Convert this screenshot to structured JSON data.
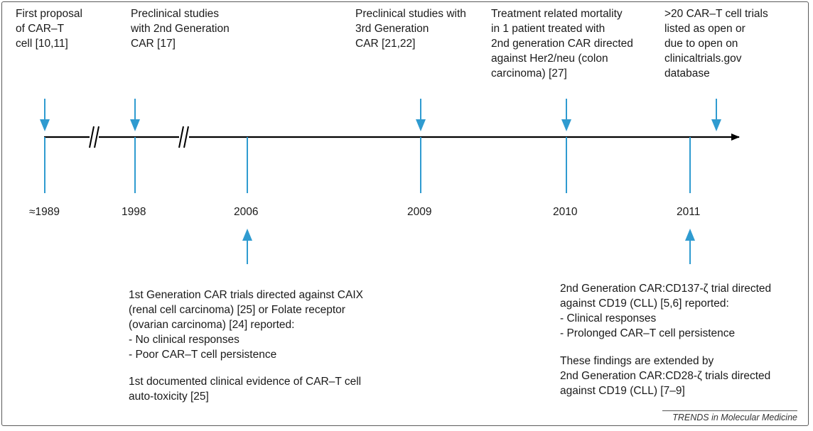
{
  "colors": {
    "accent": "#2f9bd0",
    "axis": "#000000",
    "text": "#1a1a1a"
  },
  "events": {
    "e1989": {
      "lines": [
        "First proposal",
        "of CAR–T",
        "cell [10,11]"
      ]
    },
    "e1998": {
      "lines": [
        "Preclinical studies",
        "with 2nd Generation",
        "CAR [17]"
      ]
    },
    "e2009": {
      "lines": [
        "Preclinical studies with",
        "3rd Generation",
        "CAR [21,22]"
      ]
    },
    "e2010": {
      "lines": [
        "Treatment related mortality",
        "in 1 patient treated with",
        "2nd generation CAR directed",
        "against Her2/neu (colon",
        "carcinoma) [27]"
      ]
    },
    "e_open": {
      "lines": [
        ">20 CAR–T cell trials",
        "listed as open or",
        "due to open on",
        "clinicaltrials.gov",
        "database"
      ]
    },
    "e2006": {
      "lines": [
        "1st Generation CAR trials directed against CAIX",
        "(renal cell carcinoma) [25] or Folate receptor",
        "(ovarian carcinoma) [24] reported:",
        "- No clinical responses",
        "- Poor CAR–T cell persistence"
      ],
      "lines2": [
        "1st documented clinical evidence of CAR–T cell",
        "auto-toxicity [25]"
      ]
    },
    "e2011": {
      "lines": [
        "2nd Generation CAR:CD137-ζ trial directed",
        "against CD19 (CLL) [5,6] reported:",
        "- Clinical responses",
        "- Prolonged CAR–T cell persistence"
      ],
      "lines2": [
        "These findings are extended by",
        "2nd Generation CAR:CD28-ζ trials directed",
        "against CD19 (CLL) [7–9]"
      ]
    }
  },
  "years": {
    "y1989": "≈1989",
    "y1998": "1998",
    "y2006": "2006",
    "y2009": "2009",
    "y2010": "2010",
    "y2011": "2011"
  },
  "source": "TRENDS in Molecular Medicine"
}
